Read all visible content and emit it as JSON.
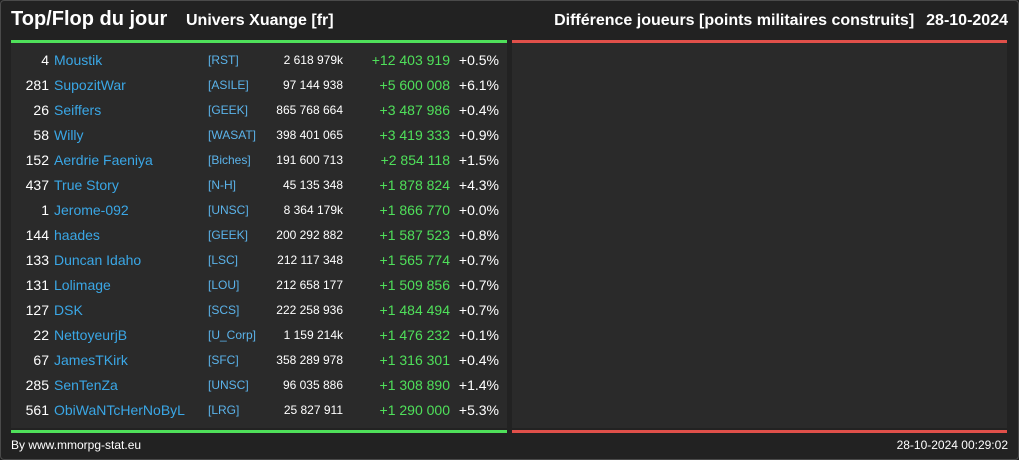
{
  "header": {
    "title": "Top/Flop du jour",
    "universe": "Univers Xuange [fr]",
    "category": "Différence joueurs [points militaires construits]",
    "date": "28-10-2024"
  },
  "colors": {
    "accent_green": "#4fe05a",
    "accent_red": "#e0504a",
    "link_blue": "#3aa7e6"
  },
  "top_rows": [
    {
      "rank": "4",
      "name": "Moustik",
      "alliance": "[RST]",
      "points": "2 618 979k",
      "diff": "+12 403 919",
      "pct": "+0.5%"
    },
    {
      "rank": "281",
      "name": "SupozitWar",
      "alliance": "[ASILE]",
      "points": "97 144 938",
      "diff": "+5 600 008",
      "pct": "+6.1%"
    },
    {
      "rank": "26",
      "name": "Seiffers",
      "alliance": "[GEEK]",
      "points": "865 768 664",
      "diff": "+3 487 986",
      "pct": "+0.4%"
    },
    {
      "rank": "58",
      "name": "Willy",
      "alliance": "[WASAT]",
      "points": "398 401 065",
      "diff": "+3 419 333",
      "pct": "+0.9%"
    },
    {
      "rank": "152",
      "name": "Aerdrie Faeniya",
      "alliance": "[Biches]",
      "points": "191 600 713",
      "diff": "+2 854 118",
      "pct": "+1.5%"
    },
    {
      "rank": "437",
      "name": "True Story",
      "alliance": "[N-H]",
      "points": "45 135 348",
      "diff": "+1 878 824",
      "pct": "+4.3%"
    },
    {
      "rank": "1",
      "name": "Jerome-092",
      "alliance": "[UNSC]",
      "points": "8 364 179k",
      "diff": "+1 866 770",
      "pct": "+0.0%"
    },
    {
      "rank": "144",
      "name": "haades",
      "alliance": "[GEEK]",
      "points": "200 292 882",
      "diff": "+1 587 523",
      "pct": "+0.8%"
    },
    {
      "rank": "133",
      "name": "Duncan Idaho",
      "alliance": "[LSC]",
      "points": "212 117 348",
      "diff": "+1 565 774",
      "pct": "+0.7%"
    },
    {
      "rank": "131",
      "name": "Lolimage",
      "alliance": "[LOU]",
      "points": "212 658 177",
      "diff": "+1 509 856",
      "pct": "+0.7%"
    },
    {
      "rank": "127",
      "name": "DSK",
      "alliance": "[SCS]",
      "points": "222 258 936",
      "diff": "+1 484 494",
      "pct": "+0.7%"
    },
    {
      "rank": "22",
      "name": "NettoyeurjB",
      "alliance": "[U_Corp]",
      "points": "1 159 214k",
      "diff": "+1 476 232",
      "pct": "+0.1%"
    },
    {
      "rank": "67",
      "name": "JamesTKirk",
      "alliance": "[SFC]",
      "points": "358 289 978",
      "diff": "+1 316 301",
      "pct": "+0.4%"
    },
    {
      "rank": "285",
      "name": "SenTenZa",
      "alliance": "[UNSC]",
      "points": "96 035 886",
      "diff": "+1 308 890",
      "pct": "+1.4%"
    },
    {
      "rank": "561",
      "name": "ObiWaNTcHerNoByL",
      "alliance": "[LRG]",
      "points": "25 827 911",
      "diff": "+1 290 000",
      "pct": "+5.3%"
    }
  ],
  "footer": {
    "source": "By www.mmorpg-stat.eu",
    "timestamp": "28-10-2024 00:29:02"
  }
}
